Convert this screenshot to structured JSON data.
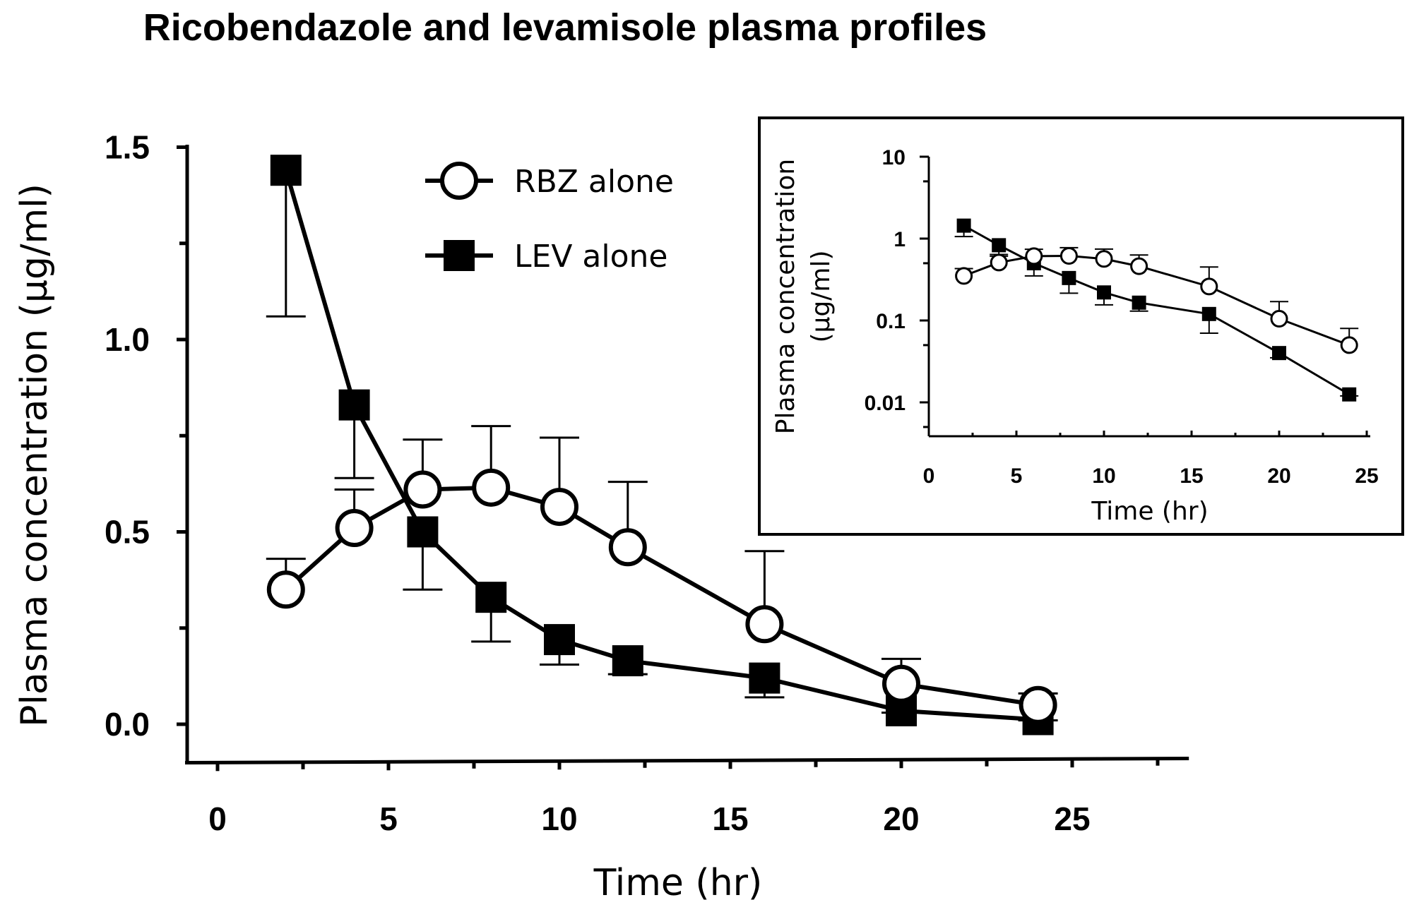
{
  "chart_data": [
    {
      "type": "line",
      "title": "Ricobendazole and levamisole plasma profiles",
      "xlabel": "Time (hr)",
      "ylabel": "Plasma concentration (μg/ml)",
      "xlim": [
        -1,
        28
      ],
      "ylim": [
        -0.1,
        1.5
      ],
      "x_ticks": [
        "0",
        "5",
        "10",
        "15",
        "20",
        "25"
      ],
      "y_ticks": [
        "0.0",
        "0.5",
        "1.0",
        "1.5"
      ],
      "legend_position": "top-center",
      "series": [
        {
          "name": "RBZ alone",
          "marker": "open-circle",
          "x": [
            2,
            4,
            6,
            8,
            10,
            12,
            16,
            20,
            24
          ],
          "y": [
            0.35,
            0.51,
            0.61,
            0.615,
            0.565,
            0.46,
            0.26,
            0.105,
            0.05
          ],
          "error_upper": [
            0.43,
            0.61,
            0.74,
            0.775,
            0.745,
            0.63,
            0.45,
            0.17,
            0.08
          ],
          "error_lower": []
        },
        {
          "name": "LEV alone",
          "marker": "filled-square",
          "x": [
            2,
            4,
            6,
            8,
            10,
            12,
            16,
            20,
            24
          ],
          "y": [
            1.44,
            0.83,
            0.5,
            0.33,
            0.22,
            0.165,
            0.12,
            0.035,
            0.012
          ],
          "error_upper": [],
          "error_lower": [
            1.06,
            0.64,
            0.35,
            0.215,
            0.155,
            0.13,
            0.07,
            0.03,
            0.01
          ]
        }
      ]
    },
    {
      "type": "line",
      "scale_y": "log",
      "xlabel": "Time (hr)",
      "ylabel_line1": "Plasma concentration",
      "ylabel_line2": "(μg/ml)",
      "xlim": [
        0,
        25
      ],
      "ylim": [
        0.005,
        10
      ],
      "x_ticks": [
        "0",
        "5",
        "10",
        "15",
        "20",
        "25"
      ],
      "y_ticks": [
        "0.01",
        "0.1",
        "1",
        "10"
      ],
      "series": [
        {
          "marker": "open-circle",
          "x": [
            2,
            4,
            6,
            8,
            10,
            12,
            16,
            20,
            24
          ],
          "y": [
            0.35,
            0.51,
            0.61,
            0.615,
            0.565,
            0.46,
            0.26,
            0.105,
            0.05
          ],
          "error_upper": [
            0.43,
            0.61,
            0.74,
            0.775,
            0.745,
            0.63,
            0.45,
            0.17,
            0.08
          ]
        },
        {
          "marker": "filled-square",
          "x": [
            2,
            4,
            6,
            8,
            10,
            12,
            16,
            20,
            24
          ],
          "y": [
            1.44,
            0.83,
            0.5,
            0.33,
            0.22,
            0.165,
            0.12,
            0.04,
            0.0125
          ],
          "error_lower": [
            1.06,
            0.64,
            0.35,
            0.215,
            0.155,
            0.13,
            0.07,
            0.035,
            0.012
          ]
        }
      ]
    }
  ]
}
